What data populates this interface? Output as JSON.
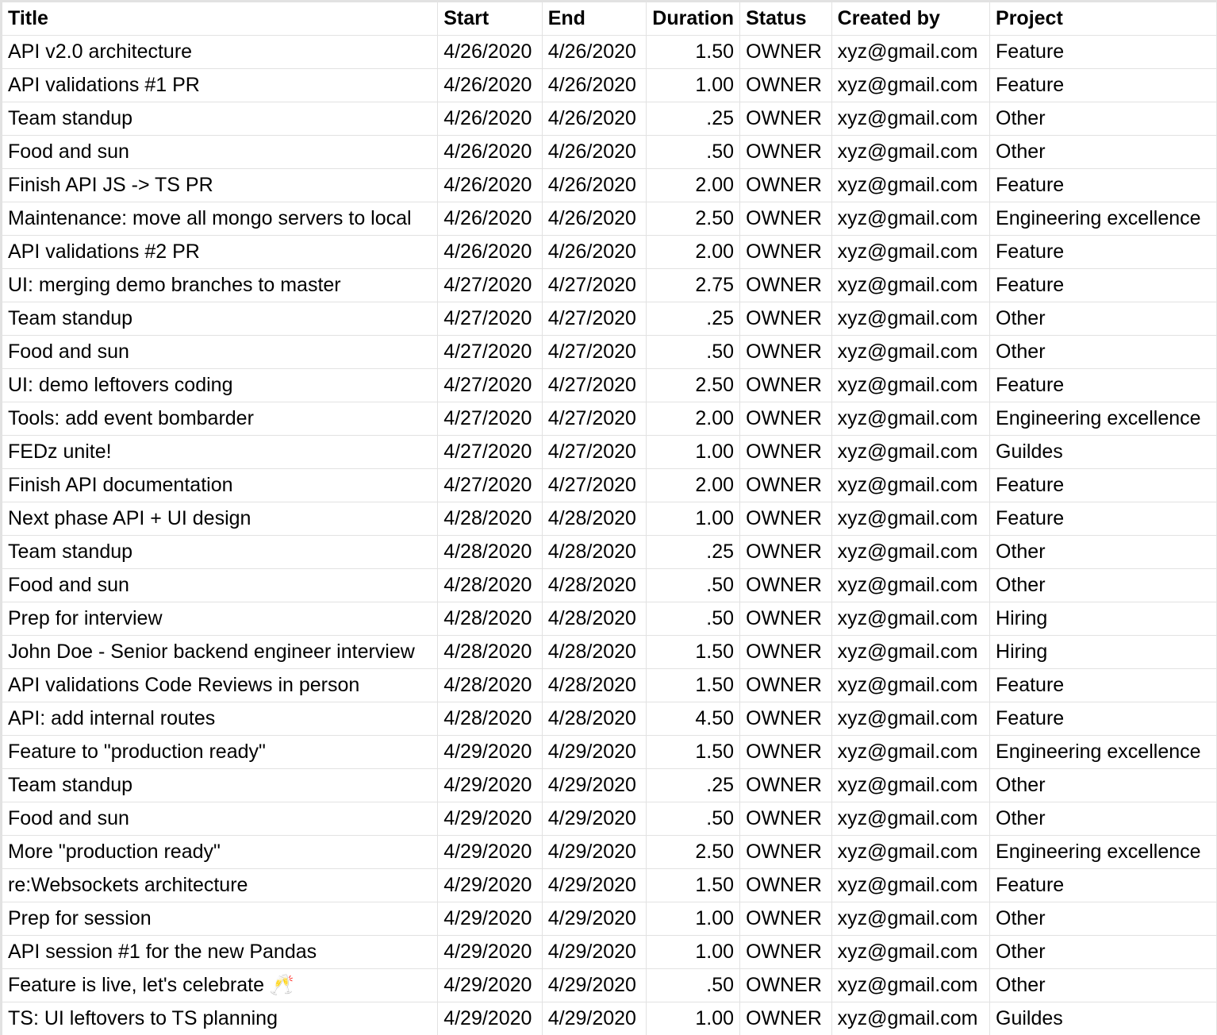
{
  "columns": [
    "Title",
    "Start",
    "End",
    "Duration",
    "Status",
    "Created by",
    "Project"
  ],
  "rows": [
    [
      "API v2.0 architecture",
      "4/26/2020",
      "4/26/2020",
      "1.50",
      "OWNER",
      "xyz@gmail.com",
      "Feature"
    ],
    [
      "API validations #1 PR",
      "4/26/2020",
      "4/26/2020",
      "1.00",
      "OWNER",
      "xyz@gmail.com",
      "Feature"
    ],
    [
      "Team standup",
      "4/26/2020",
      "4/26/2020",
      ".25",
      "OWNER",
      "xyz@gmail.com",
      "Other"
    ],
    [
      "Food and sun",
      "4/26/2020",
      "4/26/2020",
      ".50",
      "OWNER",
      "xyz@gmail.com",
      "Other"
    ],
    [
      "Finish API JS -> TS PR",
      "4/26/2020",
      "4/26/2020",
      "2.00",
      "OWNER",
      "xyz@gmail.com",
      "Feature"
    ],
    [
      "Maintenance: move all mongo servers to local",
      "4/26/2020",
      "4/26/2020",
      "2.50",
      "OWNER",
      "xyz@gmail.com",
      "Engineering excellence"
    ],
    [
      "API validations #2 PR",
      "4/26/2020",
      "4/26/2020",
      "2.00",
      "OWNER",
      "xyz@gmail.com",
      "Feature"
    ],
    [
      "UI: merging demo branches to master",
      "4/27/2020",
      "4/27/2020",
      "2.75",
      "OWNER",
      "xyz@gmail.com",
      "Feature"
    ],
    [
      "Team standup",
      "4/27/2020",
      "4/27/2020",
      ".25",
      "OWNER",
      "xyz@gmail.com",
      "Other"
    ],
    [
      "Food and sun",
      "4/27/2020",
      "4/27/2020",
      ".50",
      "OWNER",
      "xyz@gmail.com",
      "Other"
    ],
    [
      "UI: demo leftovers coding",
      "4/27/2020",
      "4/27/2020",
      "2.50",
      "OWNER",
      "xyz@gmail.com",
      "Feature"
    ],
    [
      "Tools: add event bombarder",
      "4/27/2020",
      "4/27/2020",
      "2.00",
      "OWNER",
      "xyz@gmail.com",
      "Engineering excellence"
    ],
    [
      "FEDz unite!",
      "4/27/2020",
      "4/27/2020",
      "1.00",
      "OWNER",
      "xyz@gmail.com",
      "Guildes"
    ],
    [
      "Finish API documentation",
      "4/27/2020",
      "4/27/2020",
      "2.00",
      "OWNER",
      "xyz@gmail.com",
      "Feature"
    ],
    [
      "Next phase API + UI design",
      "4/28/2020",
      "4/28/2020",
      "1.00",
      "OWNER",
      "xyz@gmail.com",
      "Feature"
    ],
    [
      "Team standup",
      "4/28/2020",
      "4/28/2020",
      ".25",
      "OWNER",
      "xyz@gmail.com",
      "Other"
    ],
    [
      "Food and sun",
      "4/28/2020",
      "4/28/2020",
      ".50",
      "OWNER",
      "xyz@gmail.com",
      "Other"
    ],
    [
      "Prep for interview",
      "4/28/2020",
      "4/28/2020",
      ".50",
      "OWNER",
      "xyz@gmail.com",
      "Hiring"
    ],
    [
      "John Doe - Senior backend engineer interview",
      "4/28/2020",
      "4/28/2020",
      "1.50",
      "OWNER",
      "xyz@gmail.com",
      "Hiring"
    ],
    [
      "API validations Code Reviews in person",
      "4/28/2020",
      "4/28/2020",
      "1.50",
      "OWNER",
      "xyz@gmail.com",
      "Feature"
    ],
    [
      "API: add internal routes",
      "4/28/2020",
      "4/28/2020",
      "4.50",
      "OWNER",
      "xyz@gmail.com",
      "Feature"
    ],
    [
      "Feature to \"production ready\"",
      "4/29/2020",
      "4/29/2020",
      "1.50",
      "OWNER",
      "xyz@gmail.com",
      "Engineering excellence"
    ],
    [
      "Team standup",
      "4/29/2020",
      "4/29/2020",
      ".25",
      "OWNER",
      "xyz@gmail.com",
      "Other"
    ],
    [
      "Food and sun",
      "4/29/2020",
      "4/29/2020",
      ".50",
      "OWNER",
      "xyz@gmail.com",
      "Other"
    ],
    [
      "More \"production ready\"",
      "4/29/2020",
      "4/29/2020",
      "2.50",
      "OWNER",
      "xyz@gmail.com",
      "Engineering excellence"
    ],
    [
      "re:Websockets architecture",
      "4/29/2020",
      "4/29/2020",
      "1.50",
      "OWNER",
      "xyz@gmail.com",
      "Feature"
    ],
    [
      "Prep for session",
      "4/29/2020",
      "4/29/2020",
      "1.00",
      "OWNER",
      "xyz@gmail.com",
      "Other"
    ],
    [
      "API session #1 for the new Pandas",
      "4/29/2020",
      "4/29/2020",
      "1.00",
      "OWNER",
      "xyz@gmail.com",
      "Other"
    ],
    [
      "Feature is live, let's celebrate 🥂",
      "4/29/2020",
      "4/29/2020",
      ".50",
      "OWNER",
      "xyz@gmail.com",
      "Other"
    ],
    [
      "TS: UI leftovers to TS planning",
      "4/29/2020",
      "4/29/2020",
      "1.00",
      "OWNER",
      "xyz@gmail.com",
      "Guildes"
    ]
  ]
}
